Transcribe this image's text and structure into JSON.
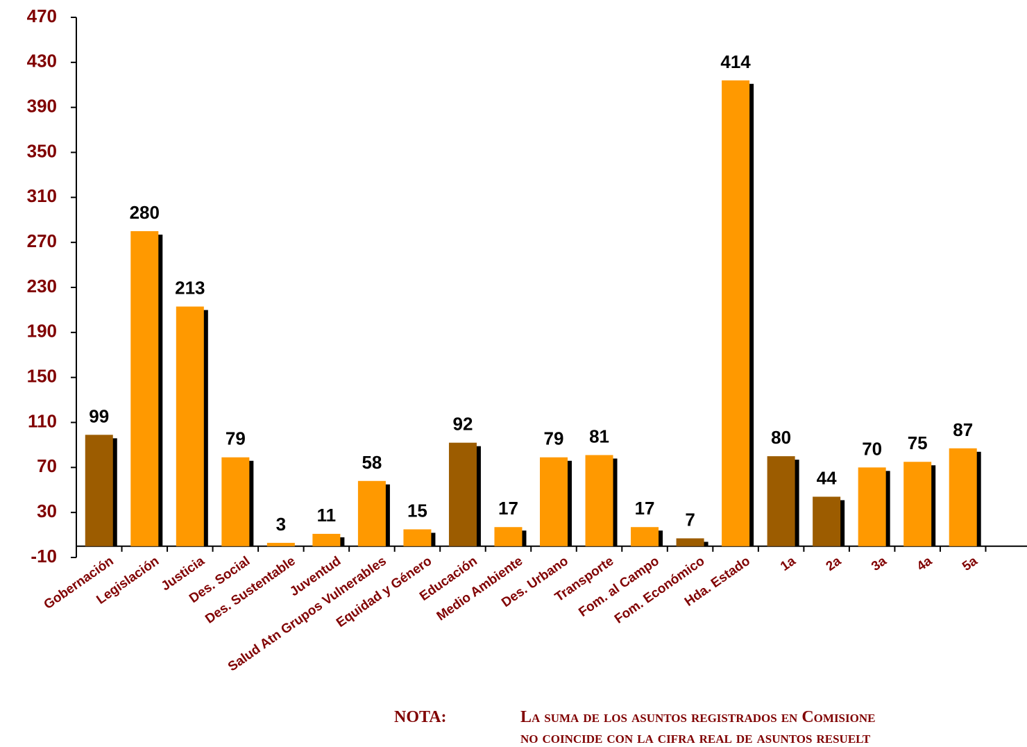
{
  "chart_data": {
    "type": "bar",
    "categories": [
      "Gobernación",
      "Legislación",
      "Justicia",
      "Des. Social",
      "Des. Sustentable",
      "Juventud",
      "Salud Atn Grupos Vulnerables",
      "Equidad y Género",
      "Educación",
      "Medio Ambiente",
      "Des. Urbano",
      "Transporte",
      "Fom. al Campo",
      "Fom. Económico",
      "Hda. Estado",
      "1a",
      "2a",
      "3a",
      "4a",
      "5a",
      null
    ],
    "values": [
      99,
      280,
      213,
      79,
      3,
      11,
      58,
      15,
      92,
      17,
      79,
      81,
      17,
      7,
      414,
      80,
      44,
      70,
      75,
      87,
      null
    ],
    "colors": [
      "#9c5c00",
      "#ff9900",
      "#ff9900",
      "#ff9900",
      "#ff9900",
      "#ff9900",
      "#ff9900",
      "#ff9900",
      "#9c5c00",
      "#ff9900",
      "#ff9900",
      "#ff9900",
      "#ff9900",
      "#9c5c00",
      "#ff9900",
      "#9c5c00",
      "#9c5c00",
      "#ff9900",
      "#ff9900",
      "#ff9900",
      null
    ],
    "shadow_color": "#000000",
    "ylim": [
      -10,
      470
    ],
    "yticks": [
      -10,
      30,
      70,
      110,
      150,
      190,
      230,
      270,
      310,
      350,
      390,
      430,
      470
    ],
    "note": {
      "label": "NOTA:",
      "lines": [
        "La suma de los asuntos registrados en Comisione",
        "no coincide con la cifra real de asuntos resuelt"
      ]
    }
  }
}
